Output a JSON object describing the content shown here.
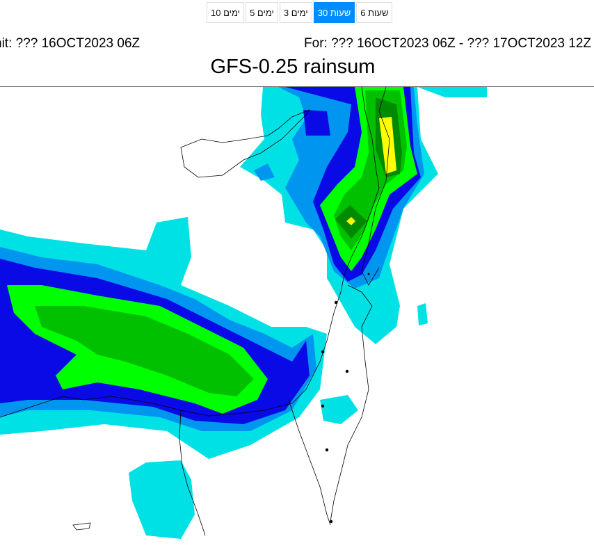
{
  "range_buttons": [
    {
      "label": "10 ימים",
      "active": false
    },
    {
      "label": "5 ימים",
      "active": false
    },
    {
      "label": "3 ימים",
      "active": false
    },
    {
      "label": "30 שעות",
      "active": true
    },
    {
      "label": "6 שעות",
      "active": false
    }
  ],
  "header": {
    "init": "nit: ??? 16OCT2023 06Z",
    "valid_for": "For: ??? 16OCT2023 06Z - ??? 17OCT2023 12Z",
    "title": "GFS-0.25 rainsum"
  },
  "colors": {
    "active_button": "#008cff",
    "level1": "#00e1e6",
    "level2": "#0096f0",
    "level3": "#0a0ae6",
    "level4": "#00ff00",
    "level5": "#00c000",
    "level6": "#008a00",
    "level7": "#ffff00"
  }
}
